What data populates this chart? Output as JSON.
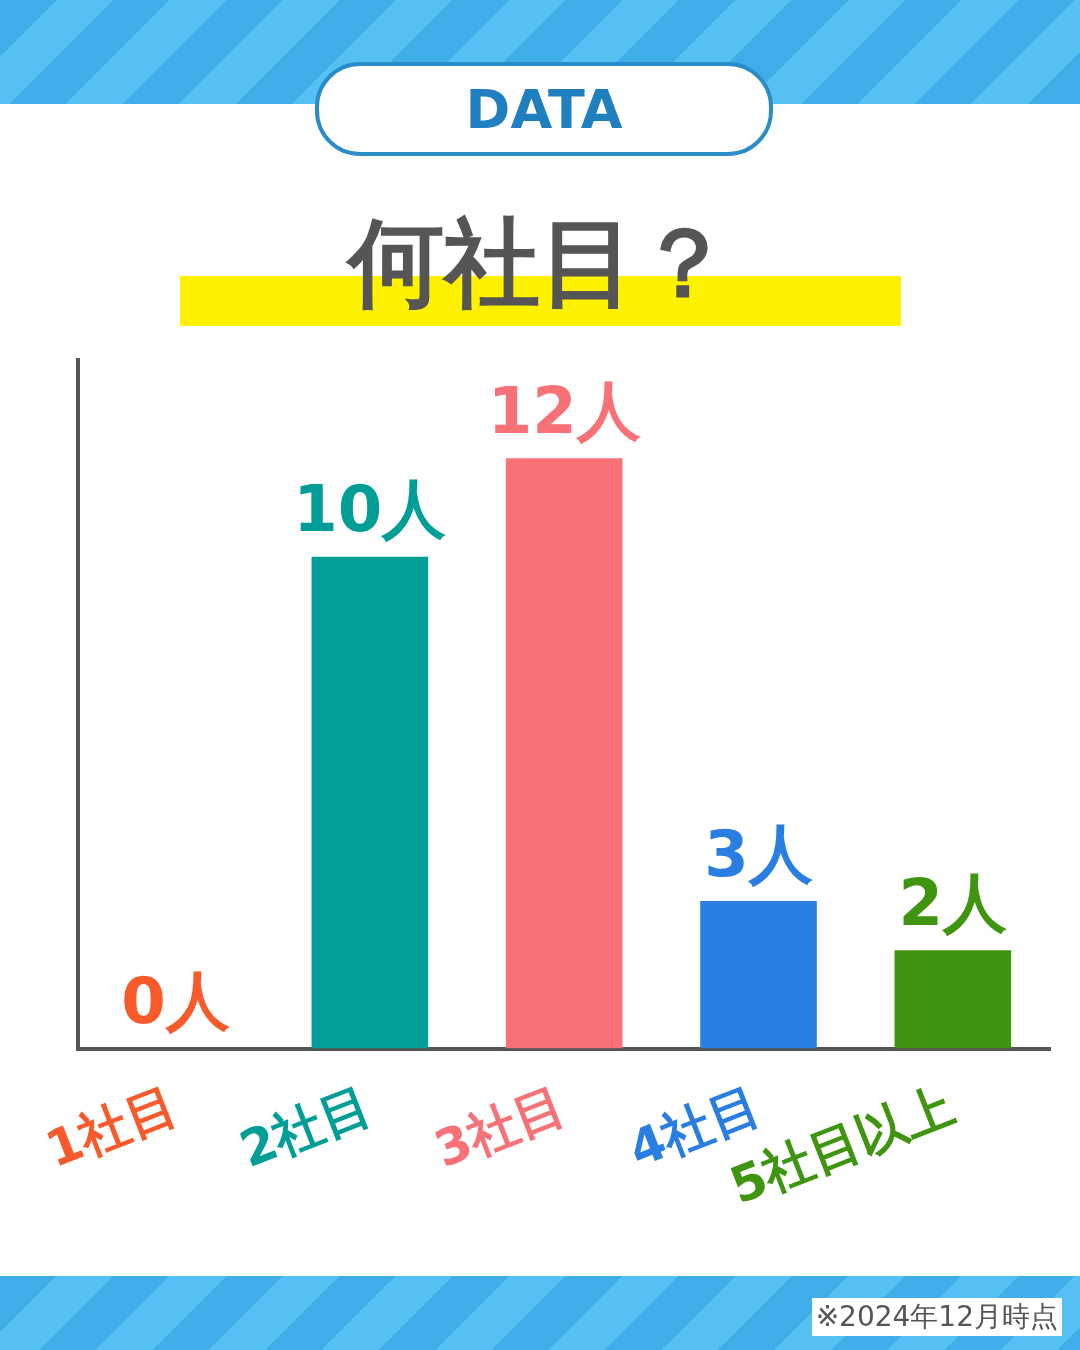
{
  "chart_data": {
    "type": "bar",
    "title": "何社目？",
    "subtitle": "DATA",
    "categories": [
      "1社目",
      "2社目",
      "3社目",
      "4社目",
      "5社目以上"
    ],
    "values": [
      0,
      10,
      12,
      3,
      2
    ],
    "colors": [
      "#f95a2c",
      "#009e96",
      "#f77177",
      "#2a7de1",
      "#3f9510"
    ],
    "value_labels": [
      "0人",
      "10人",
      "12人",
      "3人",
      "2人"
    ],
    "tick_labels": "x",
    "grid": false,
    "legend": false,
    "annotations": [
      "※2024年12月時点"
    ]
  }
}
